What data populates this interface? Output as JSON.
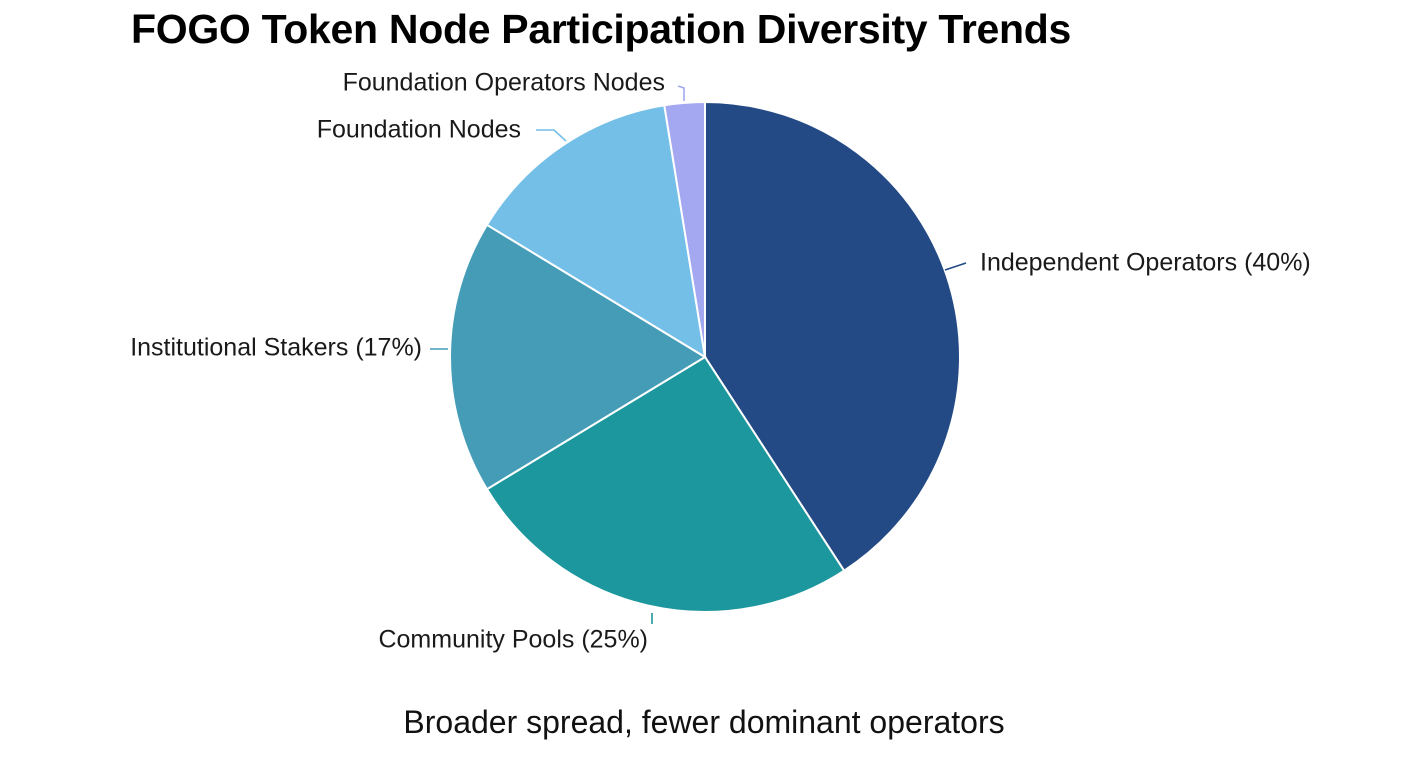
{
  "chart_data": {
    "type": "pie",
    "title": "FOGO Token Node Participation Diversity Trends",
    "caption": "Broader spread, fewer dominant operators",
    "slices": [
      {
        "label": "Independent Operators (40%)",
        "value": 40,
        "color": "#234a85"
      },
      {
        "label": "Community Pools (25%)",
        "value": 25,
        "color": "#1b979d"
      },
      {
        "label": "Institutional Stakers (17%)",
        "value": 17,
        "color": "#459cb7"
      },
      {
        "label": "Foundation Nodes",
        "value": 13.5,
        "color": "#74bfe8"
      },
      {
        "label": "Foundation Operators Nodes",
        "value": 2.5,
        "color": "#a3a8f0"
      }
    ]
  }
}
